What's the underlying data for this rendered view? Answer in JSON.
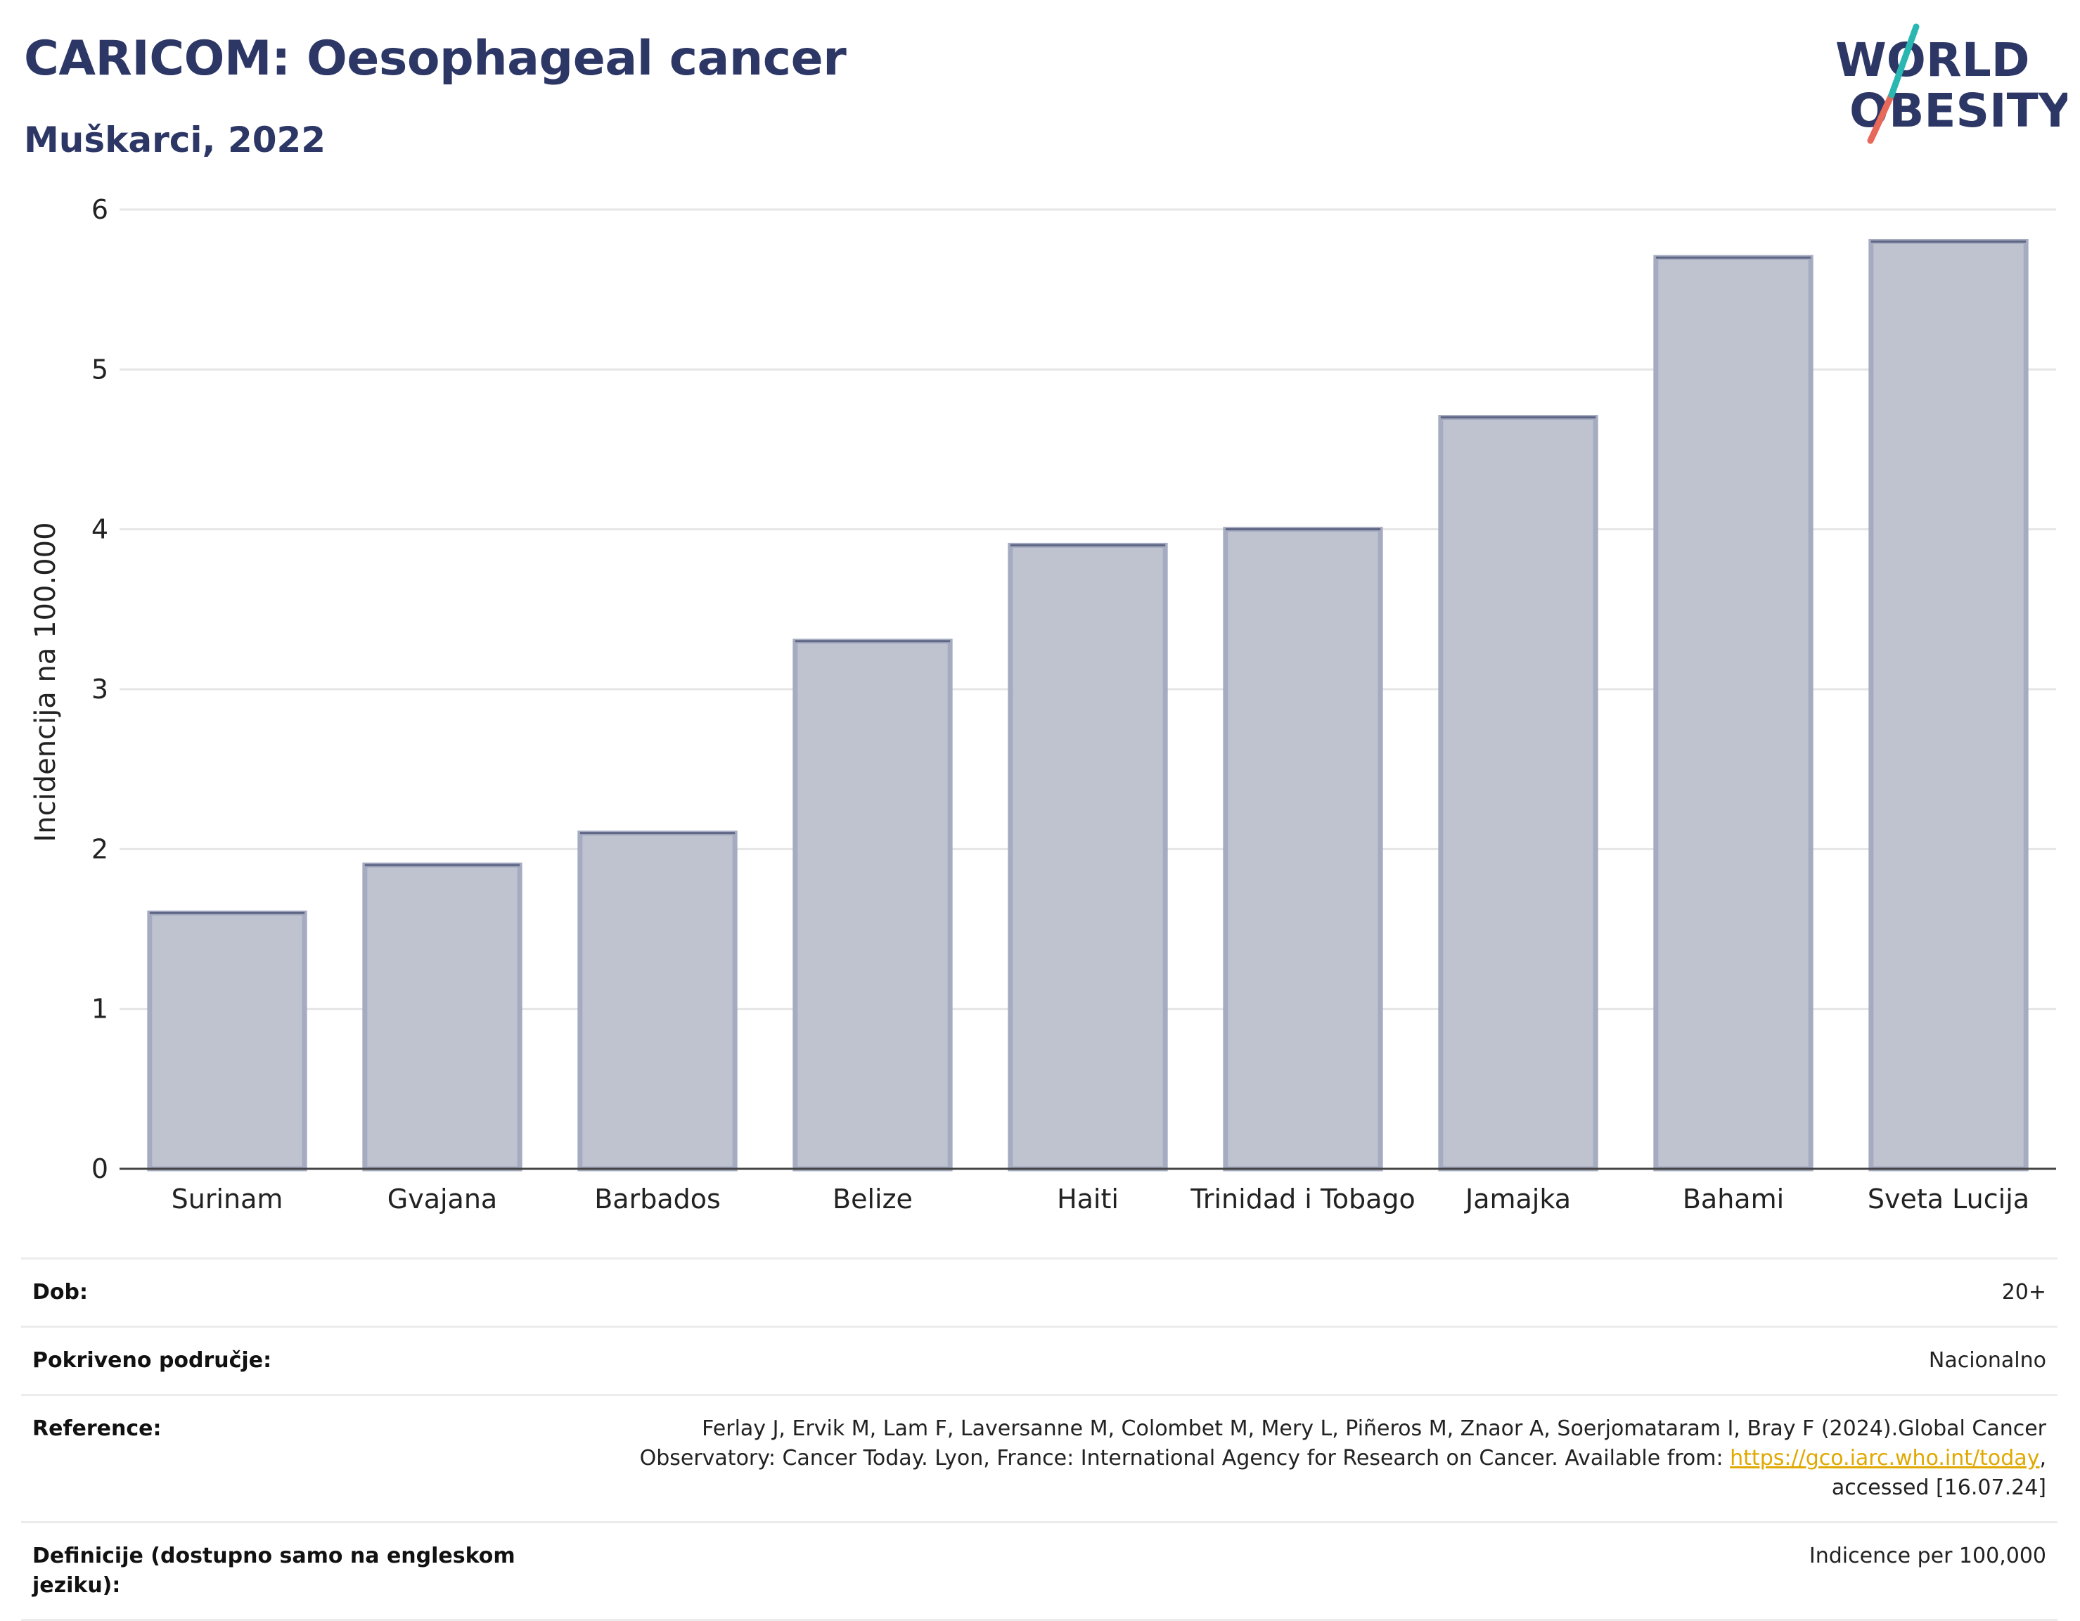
{
  "header": {
    "title": "CARICOM: Oesophageal cancer",
    "subtitle": "Muškarci, 2022"
  },
  "logo": {
    "line1": "WORLD",
    "line2": "OBESITY"
  },
  "colors": {
    "title": "#2d3766",
    "bar_fill": "#bfc3d0",
    "bar_stroke": "#a5abc0",
    "bar_top": "#5e6685",
    "grid": "#e6e6e6",
    "axis": "#444444",
    "logo_teal": "#2ab7b2",
    "logo_red": "#e8685a",
    "link": "#e0a800"
  },
  "chart_data": {
    "type": "bar",
    "title": "CARICOM: Oesophageal cancer",
    "subtitle": "Muškarci, 2022",
    "categories": [
      "Surinam",
      "Gvajana",
      "Barbados",
      "Belize",
      "Haiti",
      "Trinidad i Tobago",
      "Jamajka",
      "Bahami",
      "Sveta Lucija"
    ],
    "values": [
      1.6,
      1.9,
      2.1,
      3.3,
      3.9,
      4.0,
      4.7,
      5.7,
      5.8
    ],
    "xlabel": "",
    "ylabel": "Incidencija na 100.000",
    "ylim": [
      0,
      6
    ],
    "yticks": [
      0,
      1,
      2,
      3,
      4,
      5,
      6
    ],
    "grid": true,
    "legend": "none"
  },
  "info": {
    "age_label": "Dob:",
    "age_value": "20+",
    "coverage_label": "Pokriveno područje:",
    "coverage_value": "Nacionalno",
    "reference_label": "Reference:",
    "reference_text_1": "Ferlay J, Ervik M, Lam F, Laversanne M, Colombet M, Mery L, Piñeros M, Znaor A, Soerjomataram I, Bray F (2024).Global Cancer Observatory: Cancer Today. Lyon, France: International Agency for Research on Cancer. Available from: ",
    "reference_link": "https://gco.iarc.who.int/today",
    "reference_text_2": ", accessed [16.07.24]",
    "definitions_label": "Definicije (dostupno samo na engleskom jeziku):",
    "definitions_value": "Indicence per 100,000"
  }
}
